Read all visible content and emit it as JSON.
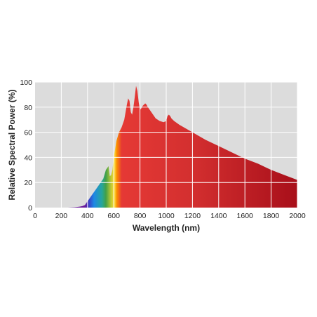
{
  "chart_data": {
    "type": "area",
    "title": "",
    "xlabel": "Wavelength (nm)",
    "ylabel": "Relative Spectral Power (%)",
    "xlim": [
      0,
      2000
    ],
    "ylim": [
      0,
      100
    ],
    "xticks": [
      0,
      200,
      400,
      600,
      800,
      1000,
      1200,
      1400,
      1600,
      1800,
      2000
    ],
    "yticks": [
      0,
      20,
      40,
      60,
      80,
      100
    ],
    "grid": true,
    "legend": "none",
    "series": [
      {
        "x": [
          250,
          300,
          340,
          360,
          380,
          400,
          420,
          440,
          460,
          480,
          500,
          520,
          540,
          560,
          570,
          580,
          590,
          600,
          620,
          640,
          660,
          680,
          700,
          710,
          720,
          730,
          740,
          750,
          760,
          770,
          780,
          790,
          800,
          810,
          820,
          830,
          840,
          850,
          860,
          880,
          900,
          920,
          950,
          980,
          1000,
          1010,
          1020,
          1030,
          1040,
          1060,
          1100,
          1200,
          1300,
          1400,
          1500,
          1600,
          1700,
          1800,
          1900,
          2000
        ],
        "y": [
          0,
          0.3,
          0.8,
          1.2,
          2,
          5,
          8,
          11,
          14,
          17,
          20,
          23,
          30,
          33,
          25,
          26,
          30,
          40,
          53,
          60,
          64,
          70,
          82,
          87,
          85,
          76,
          74,
          80,
          88,
          97,
          93,
          84,
          78,
          79,
          81,
          82,
          83,
          82,
          80,
          77,
          74,
          71,
          69,
          68,
          69,
          73,
          74,
          73,
          71,
          69,
          66,
          60,
          54,
          49,
          44,
          39,
          35,
          30,
          26,
          22
        ]
      }
    ],
    "colors": [
      "#6a1b9a",
      "#3a3fc4",
      "#1e88e5",
      "#26a69a",
      "#43a047",
      "#c0ca33",
      "#fdd835",
      "#fb8c00",
      "#e53935",
      "#d32f2f",
      "#a80f1a"
    ],
    "background": "#dcdcdc",
    "grid_color": "#ffffff"
  }
}
